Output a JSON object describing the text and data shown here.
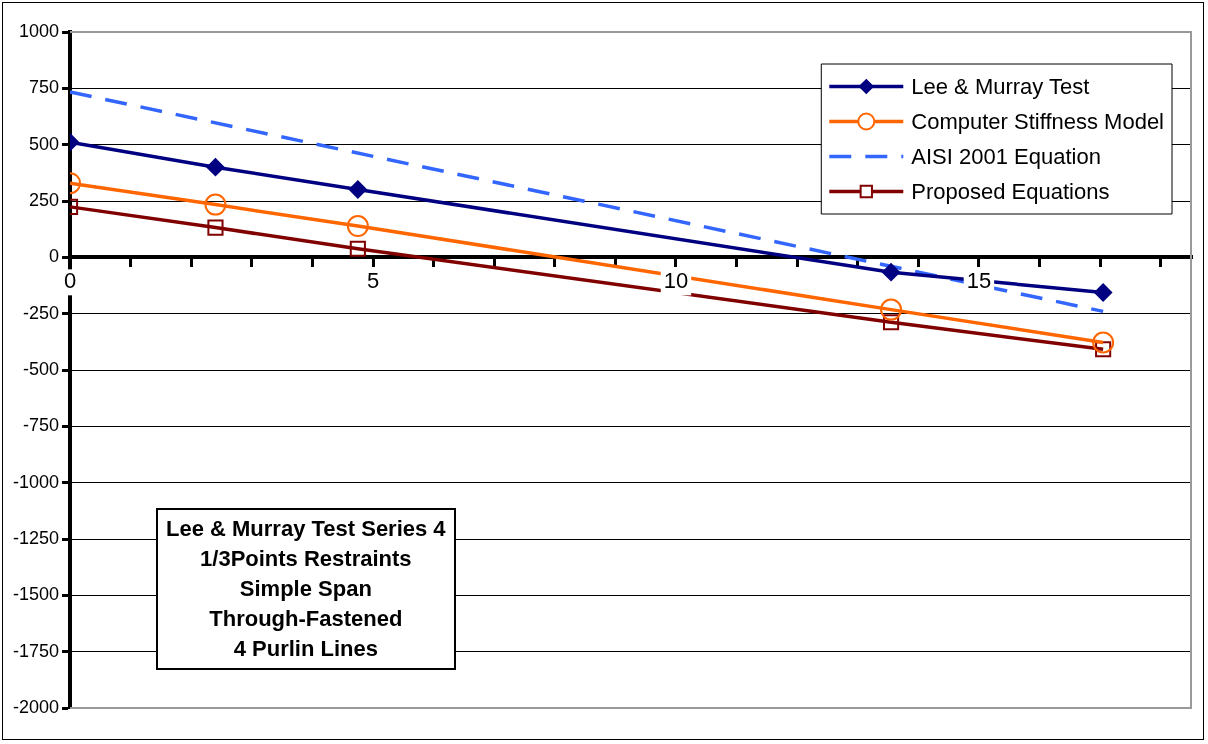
{
  "chart_data": {
    "type": "line",
    "xlim": [
      0,
      18.5
    ],
    "xticks": [
      0,
      {
        "value": 1,
        "label": null
      },
      {
        "value": 2,
        "label": null
      },
      {
        "value": 3,
        "label": null
      },
      {
        "value": 4,
        "label": null
      },
      5,
      {
        "value": 6,
        "label": null
      },
      {
        "value": 7,
        "label": null
      },
      {
        "value": 8,
        "label": null
      },
      {
        "value": 9,
        "label": null
      },
      10,
      {
        "value": 11,
        "label": null
      },
      {
        "value": 12,
        "label": null
      },
      {
        "value": 13,
        "label": null
      },
      {
        "value": 14,
        "label": null
      },
      15,
      {
        "value": 16,
        "label": null
      },
      {
        "value": 17,
        "label": null
      },
      {
        "value": 18,
        "label": null
      }
    ],
    "ylim": [
      -2000,
      1000
    ],
    "yticks": [
      -2000,
      -1750,
      -1500,
      -1250,
      -1000,
      -750,
      -500,
      -250,
      0,
      250,
      500,
      750,
      1000
    ],
    "grid": "y",
    "legend": "top right",
    "series": [
      {
        "name": "Lee & Murray Test",
        "color": "#000080",
        "marker": "diamond",
        "line_style": "solid",
        "x": [
          0,
          2.4,
          4.75,
          13.55,
          17.05
        ],
        "values": [
          511,
          400,
          301,
          -66,
          -156
        ]
      },
      {
        "name": "Computer Stiffness Model",
        "color": "#ff6600",
        "marker": "circle",
        "line_style": "solid",
        "x": [
          0,
          2.4,
          4.75,
          13.55,
          17.05
        ],
        "values": [
          329,
          234,
          139,
          -232,
          -378
        ]
      },
      {
        "name": "AISI 2001 Equation",
        "color": "#3366ff",
        "marker": "none",
        "line_style": "dashed",
        "x": [
          0,
          17.05
        ],
        "values": [
          734,
          -240
        ]
      },
      {
        "name": "Proposed Equations",
        "color": "#800000",
        "marker": "square",
        "line_style": "solid",
        "x": [
          0,
          2.4,
          4.75,
          13.55,
          17.05
        ],
        "values": [
          224,
          132,
          38,
          -288,
          -408
        ]
      }
    ],
    "annotations": [
      "Lee & Murray Test Series 4\n1/3Points Restraints\nSimple Span\nThrough-Fastened\n4 Purlin Lines"
    ]
  }
}
